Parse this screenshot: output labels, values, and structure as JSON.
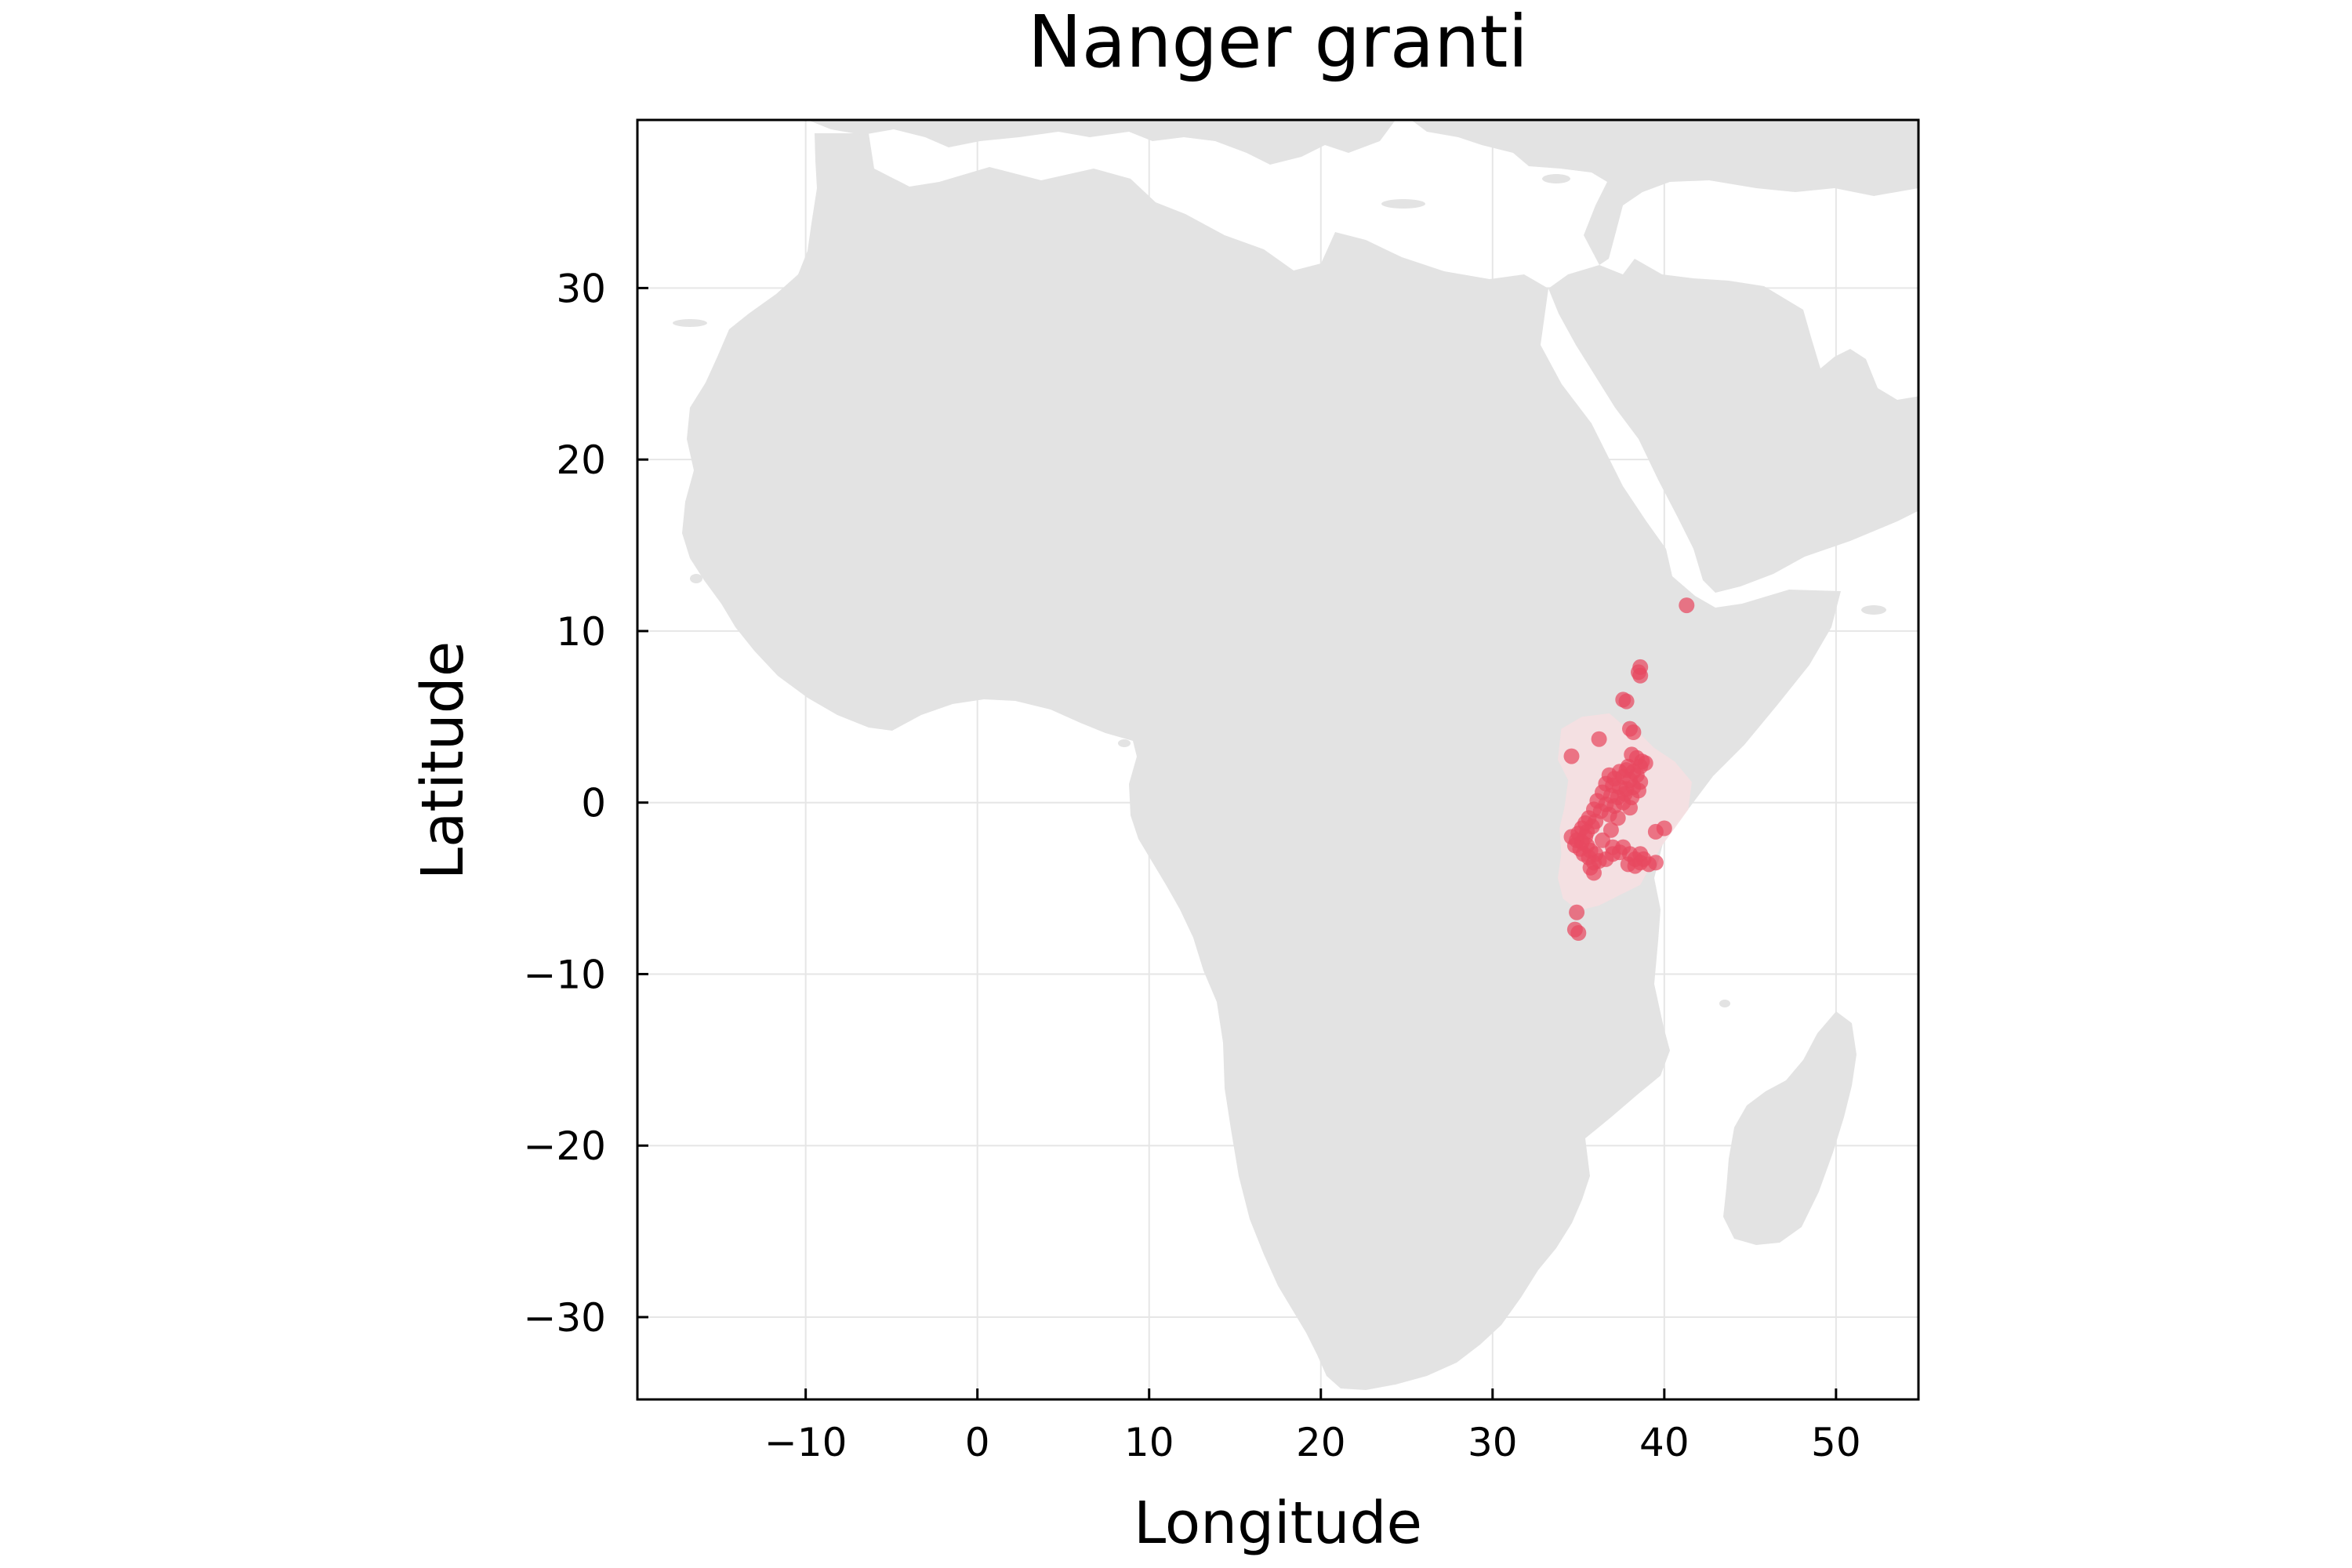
{
  "chart_data": {
    "type": "scatter",
    "title": "Nanger granti",
    "xlabel": "Longitude",
    "ylabel": "Latitude",
    "xlim": [
      -19.8,
      54.8
    ],
    "ylim": [
      -34.8,
      39.8
    ],
    "xticks": [
      -10,
      0,
      10,
      20,
      30,
      40,
      50
    ],
    "yticks": [
      -30,
      -20,
      -10,
      0,
      10,
      20,
      30
    ],
    "xtick_labels": [
      "−10",
      "0",
      "10",
      "20",
      "30",
      "40",
      "50"
    ],
    "ytick_labels": [
      "−30",
      "−20",
      "−10",
      "0",
      "10",
      "20",
      "30"
    ],
    "grid": true,
    "legend": "none",
    "colors": {
      "land": "#e3e3e3",
      "range": "#f5dfe1",
      "points": "#e8485f",
      "grid": "#e6e6e6",
      "frame": "#000000"
    },
    "range_polygon": [
      [
        34.0,
        4.3
      ],
      [
        35.2,
        5.0
      ],
      [
        36.8,
        5.2
      ],
      [
        37.5,
        4.6
      ],
      [
        38.6,
        4.0
      ],
      [
        39.4,
        3.2
      ],
      [
        40.6,
        2.4
      ],
      [
        41.6,
        1.2
      ],
      [
        41.4,
        -0.4
      ],
      [
        40.6,
        -1.5
      ],
      [
        39.8,
        -2.6
      ],
      [
        39.2,
        -3.7
      ],
      [
        38.6,
        -4.8
      ],
      [
        37.4,
        -5.4
      ],
      [
        36.2,
        -6.0
      ],
      [
        35.0,
        -6.3
      ],
      [
        34.1,
        -5.6
      ],
      [
        33.8,
        -4.4
      ],
      [
        34.0,
        -3.0
      ],
      [
        33.9,
        -1.5
      ],
      [
        34.2,
        -0.2
      ],
      [
        34.4,
        1.3
      ],
      [
        33.8,
        2.5
      ]
    ],
    "points": [
      [
        41.3,
        11.5
      ],
      [
        38.6,
        7.9
      ],
      [
        38.5,
        7.6
      ],
      [
        38.6,
        7.4
      ],
      [
        37.6,
        6.0
      ],
      [
        37.8,
        5.9
      ],
      [
        38.0,
        4.3
      ],
      [
        38.2,
        4.1
      ],
      [
        36.2,
        3.7
      ],
      [
        34.6,
        2.7
      ],
      [
        38.1,
        2.8
      ],
      [
        38.4,
        2.6
      ],
      [
        38.7,
        2.4
      ],
      [
        38.9,
        2.3
      ],
      [
        37.9,
        2.1
      ],
      [
        38.6,
        2.1
      ],
      [
        37.4,
        1.8
      ],
      [
        37.8,
        1.9
      ],
      [
        38.2,
        1.8
      ],
      [
        38.4,
        1.6
      ],
      [
        36.8,
        1.6
      ],
      [
        37.1,
        1.4
      ],
      [
        37.6,
        1.5
      ],
      [
        38.0,
        1.3
      ],
      [
        38.6,
        1.2
      ],
      [
        36.6,
        1.1
      ],
      [
        37.0,
        1.0
      ],
      [
        37.4,
        0.9
      ],
      [
        37.8,
        0.8
      ],
      [
        38.2,
        0.9
      ],
      [
        38.5,
        0.7
      ],
      [
        36.4,
        0.6
      ],
      [
        36.9,
        0.4
      ],
      [
        37.3,
        0.3
      ],
      [
        37.7,
        0.5
      ],
      [
        38.1,
        0.3
      ],
      [
        36.1,
        0.1
      ],
      [
        36.6,
        -0.1
      ],
      [
        37.1,
        -0.2
      ],
      [
        37.6,
        0.0
      ],
      [
        38.0,
        -0.3
      ],
      [
        35.9,
        -0.4
      ],
      [
        36.3,
        -0.5
      ],
      [
        36.8,
        -0.7
      ],
      [
        37.3,
        -0.9
      ],
      [
        35.6,
        -0.9
      ],
      [
        36.0,
        -1.1
      ],
      [
        35.4,
        -1.2
      ],
      [
        35.8,
        -1.4
      ],
      [
        35.2,
        -1.5
      ],
      [
        35.5,
        -1.7
      ],
      [
        35.0,
        -1.8
      ],
      [
        35.4,
        -2.0
      ],
      [
        34.6,
        -2.0
      ],
      [
        34.9,
        -2.2
      ],
      [
        35.2,
        -2.3
      ],
      [
        34.8,
        -2.5
      ],
      [
        35.1,
        -2.7
      ],
      [
        35.5,
        -2.5
      ],
      [
        35.7,
        -2.8
      ],
      [
        35.3,
        -3.0
      ],
      [
        35.6,
        -3.2
      ],
      [
        36.0,
        -3.0
      ],
      [
        35.9,
        -3.5
      ],
      [
        35.7,
        -3.8
      ],
      [
        35.9,
        -4.1
      ],
      [
        36.2,
        -3.4
      ],
      [
        36.6,
        -3.3
      ],
      [
        37.0,
        -3.0
      ],
      [
        37.4,
        -2.9
      ],
      [
        37.0,
        -2.6
      ],
      [
        36.4,
        -2.2
      ],
      [
        36.9,
        -1.6
      ],
      [
        37.6,
        -2.6
      ],
      [
        38.0,
        -3.0
      ],
      [
        38.3,
        -3.3
      ],
      [
        38.6,
        -3.0
      ],
      [
        37.9,
        -3.6
      ],
      [
        38.3,
        -3.7
      ],
      [
        38.8,
        -3.3
      ],
      [
        39.1,
        -3.6
      ],
      [
        38.6,
        -3.5
      ],
      [
        39.5,
        -3.5
      ],
      [
        40.0,
        -1.5
      ],
      [
        39.5,
        -1.7
      ],
      [
        34.9,
        -6.4
      ],
      [
        34.8,
        -7.4
      ],
      [
        35.0,
        -7.6
      ]
    ],
    "point_size": "marker-only"
  }
}
